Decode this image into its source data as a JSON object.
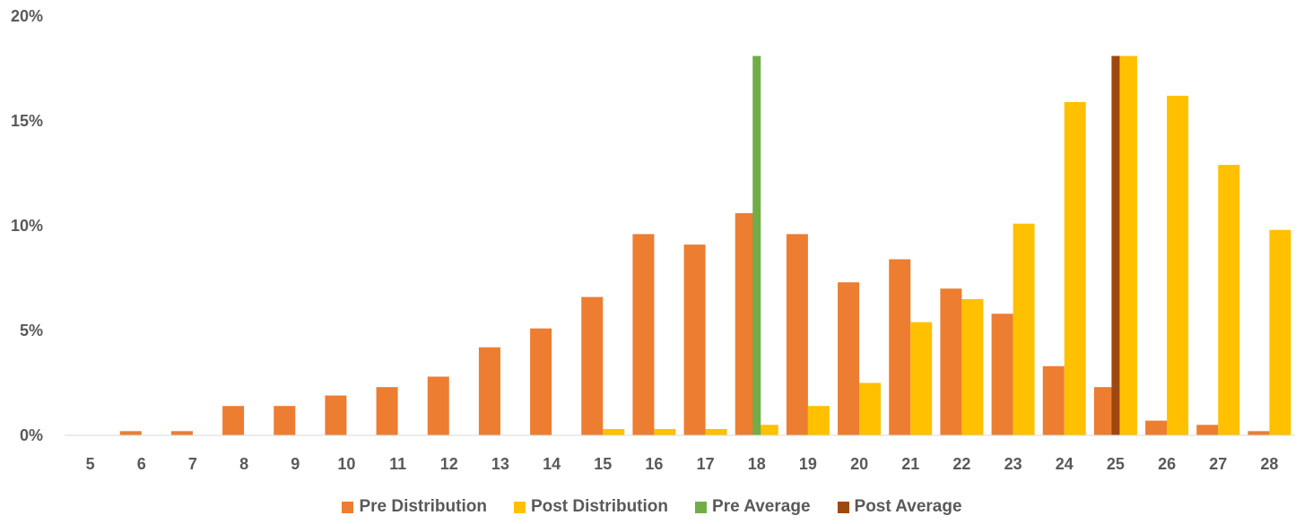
{
  "chart_data": {
    "type": "bar",
    "title": "",
    "xlabel": "",
    "ylabel": "",
    "categories": [
      "5",
      "6",
      "7",
      "8",
      "9",
      "10",
      "11",
      "12",
      "13",
      "14",
      "15",
      "16",
      "17",
      "18",
      "19",
      "20",
      "21",
      "22",
      "23",
      "24",
      "25",
      "26",
      "27",
      "28"
    ],
    "ylim": [
      0,
      20
    ],
    "y_ticks": [
      "0%",
      "5%",
      "10%",
      "15%",
      "20%"
    ],
    "y_tick_values": [
      0,
      5,
      10,
      15,
      20
    ],
    "grid": false,
    "legend_position": "bottom",
    "series": [
      {
        "name": "Pre Distribution",
        "color": "#ED7D31",
        "values": [
          0,
          0.2,
          0.2,
          1.4,
          1.4,
          1.9,
          2.3,
          2.8,
          4.2,
          5.1,
          6.6,
          9.6,
          9.1,
          10.6,
          9.6,
          7.3,
          8.4,
          7.0,
          5.8,
          3.3,
          2.3,
          0.7,
          0.5,
          0.2
        ]
      },
      {
        "name": "Post Distribution",
        "color": "#FFC000",
        "values": [
          0,
          0,
          0,
          0,
          0,
          0,
          0,
          0,
          0,
          0,
          0.3,
          0.3,
          0.3,
          0.5,
          1.4,
          2.5,
          5.4,
          6.5,
          10.1,
          15.9,
          18.1,
          16.2,
          12.9,
          9.8
        ]
      },
      {
        "name": "Pre Average",
        "color": "#70AD47",
        "category": "18",
        "value": 18.1
      },
      {
        "name": "Post Average",
        "color": "#9E480E",
        "category": "25",
        "value": 18.1
      }
    ]
  }
}
